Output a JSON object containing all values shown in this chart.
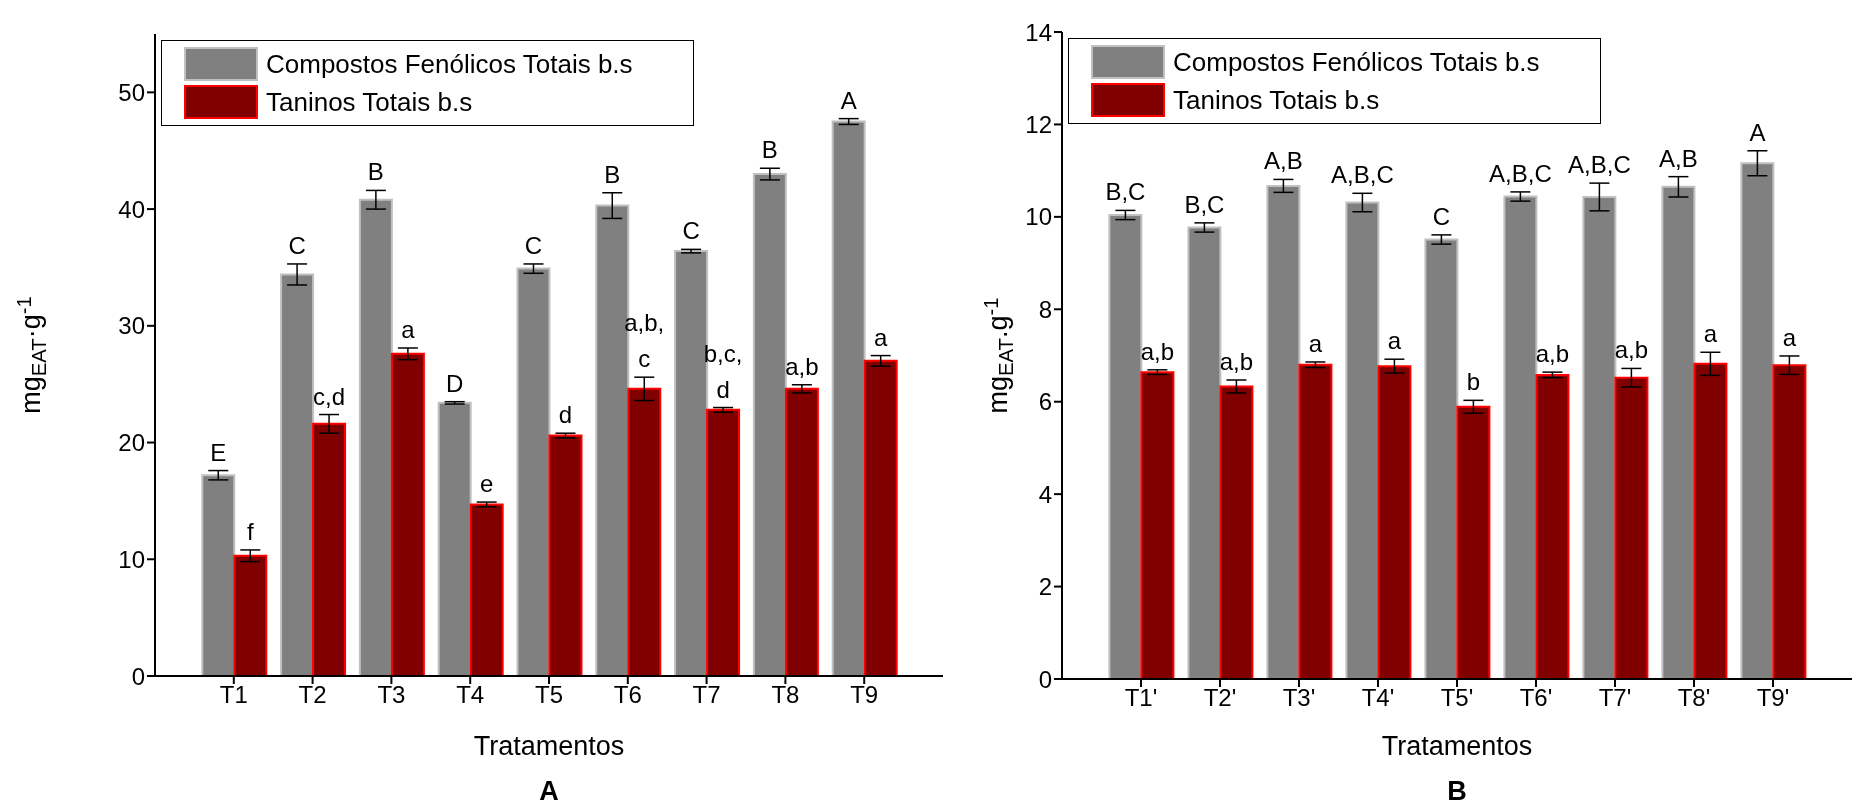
{
  "chart_data": [
    {
      "type": "bar",
      "xlabel": "Tratamentos",
      "ylabel": "mg$_{EAT}$·g$^{-1}$",
      "categories": [
        "T1",
        "T2",
        "T3",
        "T4",
        "T5",
        "T6",
        "T7",
        "T8",
        "T9"
      ],
      "series": [
        {
          "name": "Compostos Fenólicos Totais b.s",
          "color": "#808080",
          "values": [
            17.2,
            34.4,
            40.8,
            23.4,
            34.9,
            40.3,
            36.4,
            43.0,
            47.5
          ],
          "errors": [
            0.4,
            0.9,
            0.8,
            0.1,
            0.4,
            1.1,
            0.15,
            0.5,
            0.25
          ]
        },
        {
          "name": "Taninos Totais b.s",
          "color": "#800000",
          "values": [
            10.3,
            21.6,
            27.6,
            14.7,
            20.6,
            24.6,
            22.8,
            24.6,
            27.0
          ],
          "errors": [
            0.5,
            0.8,
            0.5,
            0.2,
            0.2,
            1.0,
            0.2,
            0.35,
            0.45
          ]
        }
      ],
      "ylim": [
        0,
        55
      ],
      "yticks": [
        0,
        10,
        20,
        30,
        40,
        50
      ],
      "grid": false,
      "legend": "top left",
      "annotations": [
        {
          "text": "E",
          "x": "T1",
          "y": 17.2
        },
        {
          "text": "C",
          "x": "T2",
          "y": 34.4
        },
        {
          "text": "B",
          "x": "T3",
          "y": 40.8
        },
        {
          "text": "D",
          "x": "T4",
          "y": 23.4
        },
        {
          "text": "C",
          "x": "T5",
          "y": 34.9
        },
        {
          "text": "B",
          "x": "T6",
          "y": 40.3
        },
        {
          "text": "C",
          "x": "T7",
          "y": 36.4
        },
        {
          "text": "B",
          "x": "T8",
          "y": 43.0
        },
        {
          "text": "A",
          "x": "T9",
          "y": 47.5
        },
        {
          "text": "f",
          "x": "T1",
          "y": 10.3
        },
        {
          "text": "c,d",
          "x": "T2",
          "y": 21.6
        },
        {
          "text": "a",
          "x": "T3",
          "y": 27.6
        },
        {
          "text": "e",
          "x": "T4",
          "y": 14.7
        },
        {
          "text": "d",
          "x": "T5",
          "y": 20.6
        },
        {
          "text": "a,b,\nc",
          "x": "T6",
          "y": 24.6
        },
        {
          "text": "b,c,\nd",
          "x": "T7",
          "y": 22.8
        },
        {
          "text": "a,b",
          "x": "T8",
          "y": 24.6
        },
        {
          "text": "a",
          "x": "T9",
          "y": 27.0
        },
        "A"
      ]
    },
    {
      "type": "bar",
      "xlabel": "Tratamentos",
      "ylabel": "mg$_{EAT}$.g$^{-1}$",
      "categories": [
        "T1'",
        "T2'",
        "T3'",
        "T4'",
        "T5'",
        "T6'",
        "T7'",
        "T8'",
        "T9'"
      ],
      "series": [
        {
          "name": "Compostos Fenólicos Totais b.s",
          "color": "#808080",
          "values": [
            10.04,
            9.77,
            10.67,
            10.31,
            9.51,
            10.44,
            10.43,
            10.65,
            11.16
          ],
          "errors": [
            0.1,
            0.1,
            0.14,
            0.2,
            0.1,
            0.1,
            0.3,
            0.22,
            0.27
          ]
        },
        {
          "name": "Taninos Totais b.s",
          "color": "#800000",
          "values": [
            6.64,
            6.33,
            6.8,
            6.77,
            5.89,
            6.58,
            6.52,
            6.82,
            6.79
          ],
          "errors": [
            0.05,
            0.14,
            0.06,
            0.15,
            0.14,
            0.06,
            0.2,
            0.25,
            0.2
          ]
        }
      ],
      "ylim": [
        0,
        14
      ],
      "yticks": [
        0,
        2,
        4,
        6,
        8,
        10,
        12,
        14
      ],
      "grid": false,
      "legend": "top left",
      "annotations": [
        {
          "text": "B,C",
          "x": "T1'",
          "y": 10.04
        },
        {
          "text": "B,C",
          "x": "T2'",
          "y": 9.77
        },
        {
          "text": "A,B",
          "x": "T3'",
          "y": 10.67
        },
        {
          "text": "A,B,C",
          "x": "T4'",
          "y": 10.31
        },
        {
          "text": "C",
          "x": "T5'",
          "y": 9.51
        },
        {
          "text": "A,B,C",
          "x": "T6'",
          "y": 10.44
        },
        {
          "text": "A,B,C",
          "x": "T7'",
          "y": 10.43
        },
        {
          "text": "A,B",
          "x": "T8'",
          "y": 10.65
        },
        {
          "text": "A",
          "x": "T9'",
          "y": 11.16
        },
        {
          "text": "a,b",
          "x": "T1'",
          "y": 6.64
        },
        {
          "text": "a,b",
          "x": "T2'",
          "y": 6.33
        },
        {
          "text": "a",
          "x": "T3'",
          "y": 6.8
        },
        {
          "text": "a",
          "x": "T4'",
          "y": 6.77
        },
        {
          "text": "b",
          "x": "T5'",
          "y": 5.89
        },
        {
          "text": "a,b",
          "x": "T6'",
          "y": 6.58
        },
        {
          "text": "a,b",
          "x": "T7'",
          "y": 6.52
        },
        {
          "text": "a",
          "x": "T8'",
          "y": 6.82
        },
        {
          "text": "a",
          "x": "T9'",
          "y": 6.79
        },
        "B"
      ]
    }
  ]
}
